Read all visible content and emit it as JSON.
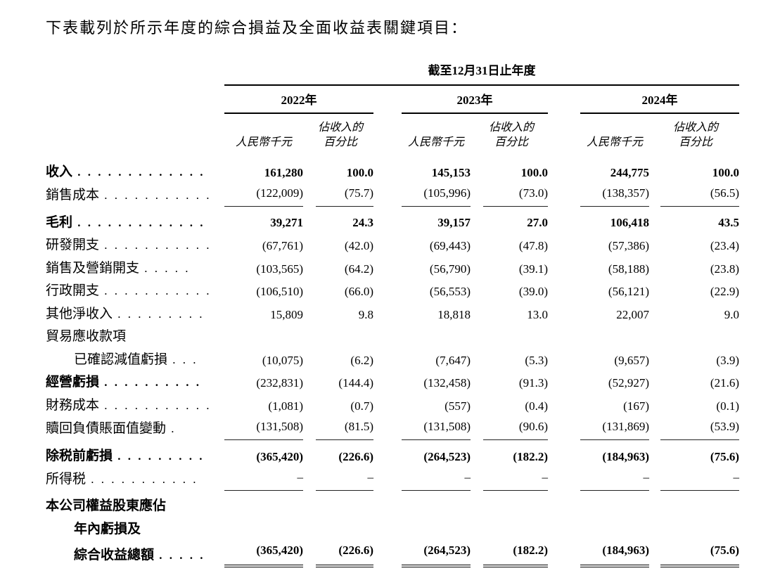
{
  "page": {
    "title": "下表載列於所示年度的綜合損益及全面收益表關鍵項目：",
    "background_color": "#ffffff",
    "text_color": "#000000"
  },
  "table": {
    "period_header": "截至12月31日止年度",
    "year_groups": [
      {
        "label": "2022年"
      },
      {
        "label": "2023年"
      },
      {
        "label": "2024年"
      }
    ],
    "subcol_headers": {
      "amount": "人民幣千元",
      "pct_line1": "佔收入的",
      "pct_line2": "百分比"
    },
    "rows": [
      {
        "label": "收入",
        "leader": ". . . . . . . . . . . . .",
        "indent": 0,
        "bold_label": true,
        "bold_values": true,
        "rule": "none",
        "pad_top": false,
        "values": [
          "161,280",
          "100.0",
          "145,153",
          "100.0",
          "244,775",
          "100.0"
        ]
      },
      {
        "label": "銷售成本",
        "leader": ". . . . . . . . . . .",
        "indent": 0,
        "bold_label": false,
        "bold_values": false,
        "rule": "single",
        "pad_top": false,
        "values": [
          "(122,009)",
          "(75.7)",
          "(105,996)",
          "(73.0)",
          "(138,357)",
          "(56.5)"
        ]
      },
      {
        "label": "毛利",
        "leader": ". . . . . . . . . . . . .",
        "indent": 0,
        "bold_label": true,
        "bold_values": true,
        "rule": "none",
        "pad_top": true,
        "values": [
          "39,271",
          "24.3",
          "39,157",
          "27.0",
          "106,418",
          "43.5"
        ]
      },
      {
        "label": "研發開支",
        "leader": ". . . . . . . . . . .",
        "indent": 0,
        "bold_label": false,
        "bold_values": false,
        "rule": "none",
        "pad_top": false,
        "values": [
          "(67,761)",
          "(42.0)",
          "(69,443)",
          "(47.8)",
          "(57,386)",
          "(23.4)"
        ]
      },
      {
        "label": "銷售及營銷開支",
        "leader": ". . . . .",
        "indent": 0,
        "bold_label": false,
        "bold_values": false,
        "rule": "none",
        "pad_top": false,
        "values": [
          "(103,565)",
          "(64.2)",
          "(56,790)",
          "(39.1)",
          "(58,188)",
          "(23.8)"
        ]
      },
      {
        "label": "行政開支",
        "leader": ". . . . . . . . . . .",
        "indent": 0,
        "bold_label": false,
        "bold_values": false,
        "rule": "none",
        "pad_top": false,
        "values": [
          "(106,510)",
          "(66.0)",
          "(56,553)",
          "(39.0)",
          "(56,121)",
          "(22.9)"
        ]
      },
      {
        "label": "其他淨收入",
        "leader": ". . . . . . . . .",
        "indent": 0,
        "bold_label": false,
        "bold_values": false,
        "rule": "none",
        "pad_top": false,
        "values": [
          "15,809",
          "9.8",
          "18,818",
          "13.0",
          "22,007",
          "9.0"
        ]
      },
      {
        "label": "貿易應收款項",
        "leader": "",
        "indent": 0,
        "bold_label": false,
        "bold_values": false,
        "rule": "none",
        "pad_top": false,
        "values": null
      },
      {
        "label": "已確認減值虧損",
        "leader": ". . .",
        "indent": 1,
        "bold_label": false,
        "bold_values": false,
        "rule": "none",
        "pad_top": false,
        "values": [
          "(10,075)",
          "(6.2)",
          "(7,647)",
          "(5.3)",
          "(9,657)",
          "(3.9)"
        ]
      },
      {
        "label": "經營虧損",
        "leader": ". . . . . . . . . .",
        "indent": 0,
        "bold_label": true,
        "bold_values": false,
        "rule": "none",
        "pad_top": false,
        "values": [
          "(232,831)",
          "(144.4)",
          "(132,458)",
          "(91.3)",
          "(52,927)",
          "(21.6)"
        ]
      },
      {
        "label": "財務成本",
        "leader": ". . . . . . . . . . .",
        "indent": 0,
        "bold_label": false,
        "bold_values": false,
        "rule": "none",
        "pad_top": false,
        "values": [
          "(1,081)",
          "(0.7)",
          "(557)",
          "(0.4)",
          "(167)",
          "(0.1)"
        ]
      },
      {
        "label": "贖回負債賬面值變動",
        "leader": ".",
        "indent": 0,
        "bold_label": false,
        "bold_values": false,
        "rule": "single",
        "pad_top": false,
        "values": [
          "(131,508)",
          "(81.5)",
          "(131,508)",
          "(90.6)",
          "(131,869)",
          "(53.9)"
        ]
      },
      {
        "label": "除税前虧損",
        "leader": ". . . . . . . . .",
        "indent": 0,
        "bold_label": true,
        "bold_values": true,
        "rule": "none",
        "pad_top": true,
        "values": [
          "(365,420)",
          "(226.6)",
          "(264,523)",
          "(182.2)",
          "(184,963)",
          "(75.6)"
        ]
      },
      {
        "label": "所得税",
        "leader": ". . . . . . . . . . .",
        "indent": 0,
        "bold_label": false,
        "bold_values": false,
        "rule": "single",
        "pad_top": false,
        "values": [
          "–",
          "–",
          "–",
          "–",
          "–",
          "–"
        ]
      },
      {
        "label": "本公司權益股東應佔",
        "leader": "",
        "indent": 0,
        "bold_label": true,
        "bold_values": false,
        "rule": "none",
        "pad_top": true,
        "values": null
      },
      {
        "label": "年內虧損及",
        "leader": "",
        "indent": 1,
        "bold_label": true,
        "bold_values": false,
        "rule": "none",
        "pad_top": false,
        "values": null
      },
      {
        "label": "綜合收益總額",
        "leader": ". . . . .",
        "indent": 1,
        "bold_label": true,
        "bold_values": true,
        "rule": "double",
        "pad_top": false,
        "values": [
          "(365,420)",
          "(226.6)",
          "(264,523)",
          "(182.2)",
          "(184,963)",
          "(75.6)"
        ]
      }
    ]
  }
}
